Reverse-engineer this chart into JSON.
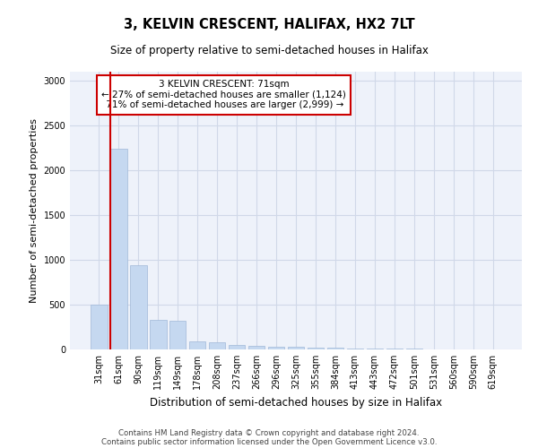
{
  "title": "3, KELVIN CRESCENT, HALIFAX, HX2 7LT",
  "subtitle": "Size of property relative to semi-detached houses in Halifax",
  "xlabel": "Distribution of semi-detached houses by size in Halifax",
  "ylabel": "Number of semi-detached properties",
  "footer_line1": "Contains HM Land Registry data © Crown copyright and database right 2024.",
  "footer_line2": "Contains public sector information licensed under the Open Government Licence v3.0.",
  "bar_color": "#c5d8f0",
  "bar_edge_color": "#a0b8d8",
  "annotation_box_color": "#cc0000",
  "vline_color": "#cc0000",
  "categories": [
    "31sqm",
    "61sqm",
    "90sqm",
    "119sqm",
    "149sqm",
    "178sqm",
    "208sqm",
    "237sqm",
    "266sqm",
    "296sqm",
    "325sqm",
    "355sqm",
    "384sqm",
    "413sqm",
    "443sqm",
    "472sqm",
    "501sqm",
    "531sqm",
    "560sqm",
    "590sqm",
    "619sqm"
  ],
  "values": [
    500,
    2240,
    940,
    330,
    325,
    90,
    80,
    55,
    40,
    35,
    30,
    25,
    20,
    15,
    10,
    8,
    6,
    5,
    4,
    3,
    2
  ],
  "ylim": [
    0,
    3100
  ],
  "yticks": [
    0,
    500,
    1000,
    1500,
    2000,
    2500,
    3000
  ],
  "property_label": "3 KELVIN CRESCENT: 71sqm",
  "pct_smaller": 27,
  "num_smaller": 1124,
  "pct_larger": 71,
  "num_larger": 2999,
  "vline_bar_index": 1,
  "grid_color": "#d0d8e8",
  "bg_color": "#eef2fa"
}
